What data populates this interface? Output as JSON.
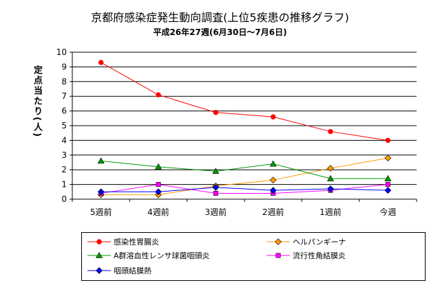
{
  "chart_data": {
    "type": "line",
    "title": "京都府感染症発生動向調査(上位5疾患の推移グラフ)",
    "subtitle": "平成26年27週(6月30日～7月6日)",
    "ylabel": "定点当たり(人)",
    "xlabel": "",
    "categories": [
      "5週前",
      "4週前",
      "3週前",
      "2週前",
      "1週前",
      "今週"
    ],
    "ylim": [
      0,
      10
    ],
    "yticks": [
      0,
      1,
      2,
      3,
      4,
      5,
      6,
      7,
      8,
      9,
      10
    ],
    "grid": true,
    "legend_position": "bottom",
    "series": [
      {
        "name": "感染性胃腸炎",
        "color": "#ff0000",
        "marker": "circle",
        "values": [
          9.3,
          7.1,
          5.9,
          5.6,
          4.6,
          4.0
        ]
      },
      {
        "name": "ヘルパンギーナ",
        "color": "#ff9900",
        "marker": "diamond",
        "values": [
          0.3,
          0.3,
          0.9,
          1.3,
          2.1,
          2.8
        ]
      },
      {
        "name": "A群溶血性レンサ球菌咽頭炎",
        "color": "#009900",
        "marker": "triangle",
        "values": [
          2.6,
          2.2,
          1.9,
          2.4,
          1.4,
          1.4
        ]
      },
      {
        "name": "流行性角結膜炎",
        "color": "#ff00ff",
        "marker": "square",
        "values": [
          0.4,
          1.0,
          0.4,
          0.4,
          0.6,
          1.0
        ]
      },
      {
        "name": "咽頭結膜熱",
        "color": "#0000ff",
        "marker": "diamond",
        "values": [
          0.5,
          0.5,
          0.8,
          0.6,
          0.7,
          0.6
        ]
      }
    ]
  }
}
